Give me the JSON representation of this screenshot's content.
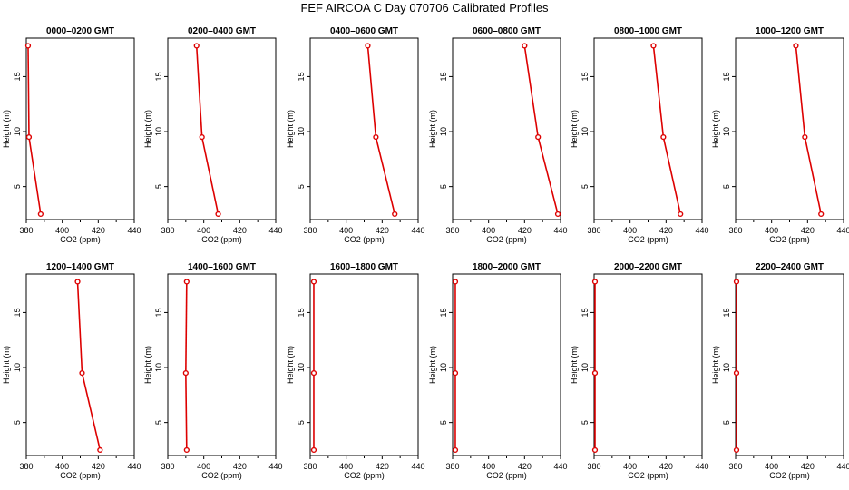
{
  "title": "FEF AIRCOA C  Day 070706  Calibrated Profiles",
  "colors": {
    "series": "#dd0000",
    "axis": "#000000",
    "background": "#ffffff"
  },
  "chart_data": [
    {
      "type": "line",
      "title": "0000–0200 GMT",
      "xlabel": "CO2 (ppm)",
      "ylabel": "Height (m)",
      "xlim": [
        380,
        440
      ],
      "ylim": [
        2,
        18.5
      ],
      "xticks": [
        380,
        400,
        420,
        440
      ],
      "yticks": [
        5,
        10,
        15
      ],
      "grid": false,
      "x": [
        388,
        381.5,
        381
      ],
      "y": [
        2.5,
        9.5,
        17.8
      ]
    },
    {
      "type": "line",
      "title": "0200–0400 GMT",
      "xlabel": "CO2 (ppm)",
      "ylabel": "Height (m)",
      "xlim": [
        380,
        440
      ],
      "ylim": [
        2,
        18.5
      ],
      "xticks": [
        380,
        400,
        420,
        440
      ],
      "yticks": [
        5,
        10,
        15
      ],
      "grid": false,
      "x": [
        408,
        399,
        396
      ],
      "y": [
        2.5,
        9.5,
        17.8
      ]
    },
    {
      "type": "line",
      "title": "0400–0600 GMT",
      "xlabel": "CO2 (ppm)",
      "ylabel": "Height (m)",
      "xlim": [
        380,
        440
      ],
      "ylim": [
        2,
        18.5
      ],
      "xticks": [
        380,
        400,
        420,
        440
      ],
      "yticks": [
        5,
        10,
        15
      ],
      "grid": false,
      "x": [
        427,
        416.5,
        412
      ],
      "y": [
        2.5,
        9.5,
        17.8
      ]
    },
    {
      "type": "line",
      "title": "0600–0800 GMT",
      "xlabel": "CO2 (ppm)",
      "ylabel": "Height (m)",
      "xlim": [
        380,
        440
      ],
      "ylim": [
        2,
        18.5
      ],
      "xticks": [
        380,
        400,
        420,
        440
      ],
      "yticks": [
        5,
        10,
        15
      ],
      "grid": false,
      "x": [
        438.5,
        427.5,
        420
      ],
      "y": [
        2.5,
        9.5,
        17.8
      ]
    },
    {
      "type": "line",
      "title": "0800–1000 GMT",
      "xlabel": "CO2 (ppm)",
      "ylabel": "Height (m)",
      "xlim": [
        380,
        440
      ],
      "ylim": [
        2,
        18.5
      ],
      "xticks": [
        380,
        400,
        420,
        440
      ],
      "yticks": [
        5,
        10,
        15
      ],
      "grid": false,
      "x": [
        428,
        418.5,
        413
      ],
      "y": [
        2.5,
        9.5,
        17.8
      ]
    },
    {
      "type": "line",
      "title": "1000–1200 GMT",
      "xlabel": "CO2 (ppm)",
      "ylabel": "Height (m)",
      "xlim": [
        380,
        440
      ],
      "ylim": [
        2,
        18.5
      ],
      "xticks": [
        380,
        400,
        420,
        440
      ],
      "yticks": [
        5,
        10,
        15
      ],
      "grid": false,
      "x": [
        427.5,
        418.5,
        413.5
      ],
      "y": [
        2.5,
        9.5,
        17.8
      ]
    },
    {
      "type": "line",
      "title": "1200–1400 GMT",
      "xlabel": "CO2 (ppm)",
      "ylabel": "Height (m)",
      "xlim": [
        380,
        440
      ],
      "ylim": [
        2,
        18.5
      ],
      "xticks": [
        380,
        400,
        420,
        440
      ],
      "yticks": [
        5,
        10,
        15
      ],
      "grid": false,
      "x": [
        421,
        411,
        408.5
      ],
      "y": [
        2.5,
        9.5,
        17.8
      ]
    },
    {
      "type": "line",
      "title": "1400–1600 GMT",
      "xlabel": "CO2 (ppm)",
      "ylabel": "Height (m)",
      "xlim": [
        380,
        440
      ],
      "ylim": [
        2,
        18.5
      ],
      "xticks": [
        380,
        400,
        420,
        440
      ],
      "yticks": [
        5,
        10,
        15
      ],
      "grid": false,
      "x": [
        390.5,
        390,
        390.5
      ],
      "y": [
        2.5,
        9.5,
        17.8
      ]
    },
    {
      "type": "line",
      "title": "1600–1800 GMT",
      "xlabel": "CO2 (ppm)",
      "ylabel": "Height (m)",
      "xlim": [
        380,
        440
      ],
      "ylim": [
        2,
        18.5
      ],
      "xticks": [
        380,
        400,
        420,
        440
      ],
      "yticks": [
        5,
        10,
        15
      ],
      "grid": false,
      "x": [
        382,
        382,
        382
      ],
      "y": [
        2.5,
        9.5,
        17.8
      ]
    },
    {
      "type": "line",
      "title": "1800–2000 GMT",
      "xlabel": "CO2 (ppm)",
      "ylabel": "Height (m)",
      "xlim": [
        380,
        440
      ],
      "ylim": [
        2,
        18.5
      ],
      "xticks": [
        380,
        400,
        420,
        440
      ],
      "yticks": [
        5,
        10,
        15
      ],
      "grid": false,
      "x": [
        381.5,
        381.5,
        381.5
      ],
      "y": [
        2.5,
        9.5,
        17.8
      ]
    },
    {
      "type": "line",
      "title": "2000–2200 GMT",
      "xlabel": "CO2 (ppm)",
      "ylabel": "Height (m)",
      "xlim": [
        380,
        440
      ],
      "ylim": [
        2,
        18.5
      ],
      "xticks": [
        380,
        400,
        420,
        440
      ],
      "yticks": [
        5,
        10,
        15
      ],
      "grid": false,
      "x": [
        380.5,
        380.5,
        380.5
      ],
      "y": [
        2.5,
        9.5,
        17.8
      ]
    },
    {
      "type": "line",
      "title": "2200–2400 GMT",
      "xlabel": "CO2 (ppm)",
      "ylabel": "Height (m)",
      "xlim": [
        380,
        440
      ],
      "ylim": [
        2,
        18.5
      ],
      "xticks": [
        380,
        400,
        420,
        440
      ],
      "yticks": [
        5,
        10,
        15
      ],
      "grid": false,
      "x": [
        380.5,
        380.5,
        380.5
      ],
      "y": [
        2.5,
        9.5,
        17.8
      ]
    }
  ]
}
